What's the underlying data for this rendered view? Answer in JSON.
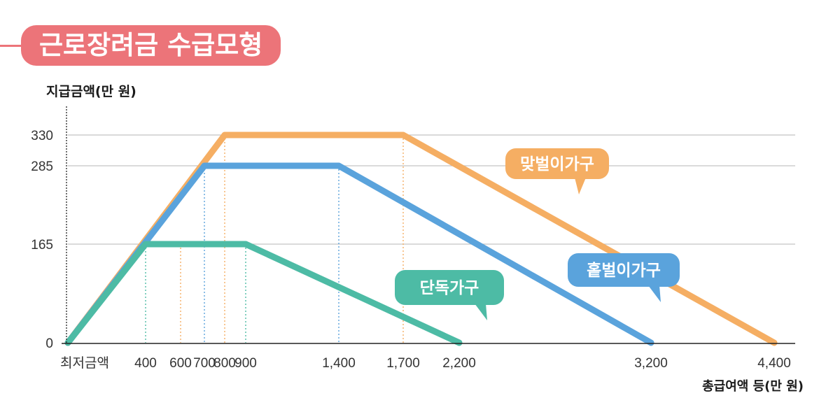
{
  "chart_data": {
    "type": "line",
    "title": "근로장려금 수급모형",
    "xlabel": "총급여액 등(만 원)",
    "ylabel": "지급금액(만 원)",
    "x_ticks": [
      {
        "value": 0,
        "label": "최저금액"
      },
      {
        "value": 400,
        "label": "400"
      },
      {
        "value": 600,
        "label": "600"
      },
      {
        "value": 700,
        "label": "700"
      },
      {
        "value": 800,
        "label": "800"
      },
      {
        "value": 900,
        "label": "900"
      },
      {
        "value": 1400,
        "label": "1,400"
      },
      {
        "value": 1700,
        "label": "1,700"
      },
      {
        "value": 2200,
        "label": "2,200"
      },
      {
        "value": 3200,
        "label": "3,200"
      },
      {
        "value": 4400,
        "label": "4,400"
      }
    ],
    "y_ticks": [
      0,
      165,
      285,
      330
    ],
    "series": [
      {
        "name": "단독가구",
        "color": "#4dbba5",
        "points": [
          [
            0,
            0
          ],
          [
            400,
            165
          ],
          [
            900,
            165
          ],
          [
            2200,
            0
          ]
        ]
      },
      {
        "name": "홑벌이가구",
        "color": "#5aa3dc",
        "points": [
          [
            0,
            0
          ],
          [
            700,
            285
          ],
          [
            1400,
            285
          ],
          [
            3200,
            0
          ]
        ]
      },
      {
        "name": "맞벌이가구",
        "color": "#f5ae63",
        "points": [
          [
            0,
            0
          ],
          [
            800,
            330
          ],
          [
            1700,
            330
          ],
          [
            4400,
            0
          ]
        ]
      }
    ],
    "guides": [
      {
        "x": 400,
        "y": 165,
        "color": "#4dbba5"
      },
      {
        "x": 900,
        "y": 165,
        "color": "#4dbba5"
      },
      {
        "x": 600,
        "y": 165,
        "color": "#f5ae63"
      },
      {
        "x": 700,
        "y": 285,
        "color": "#5aa3dc"
      },
      {
        "x": 1400,
        "y": 285,
        "color": "#5aa3dc"
      },
      {
        "x": 800,
        "y": 330,
        "color": "#f5ae63"
      },
      {
        "x": 1700,
        "y": 330,
        "color": "#f5ae63"
      }
    ],
    "grid_color": "#c4c4c4",
    "axis_color": "#222222"
  }
}
